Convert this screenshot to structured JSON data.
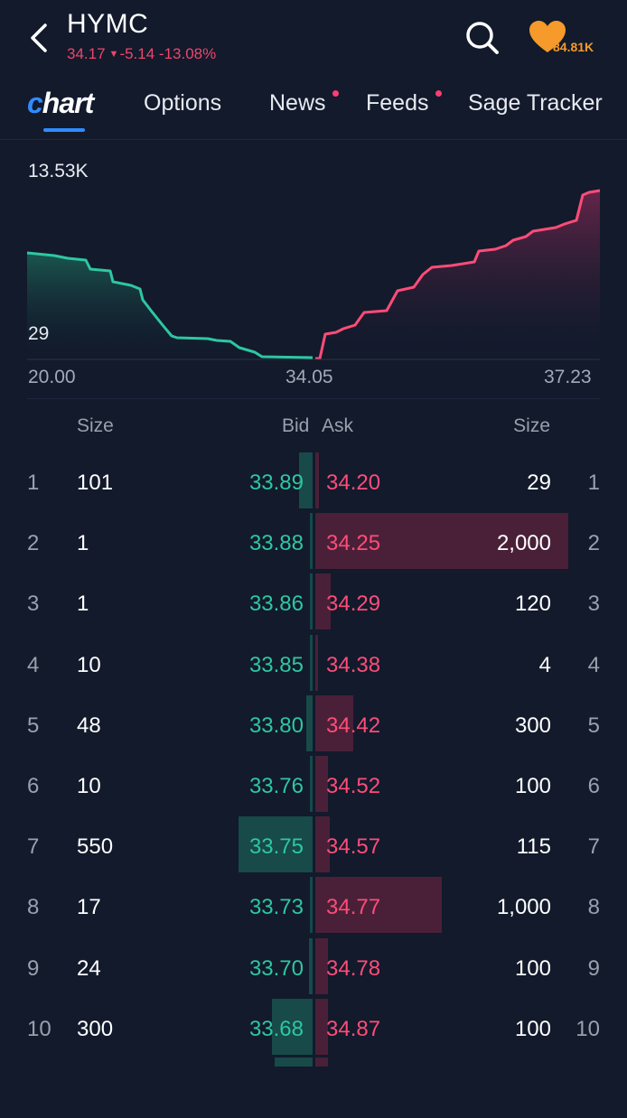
{
  "header": {
    "ticker": "HYMC",
    "price": "34.17",
    "change": "-5.14",
    "change_pct": "-13.08%",
    "watch_count": "84.81K",
    "icons": {
      "back": "chevron-left-icon",
      "search": "search-icon",
      "watch": "heart-icon"
    }
  },
  "tabs": [
    {
      "label": "Chart",
      "active": true
    },
    {
      "label": "Options"
    },
    {
      "label": "News",
      "dot": true
    },
    {
      "label": "Feeds",
      "dot": true
    },
    {
      "label": "Sage Tracker"
    }
  ],
  "chart_data": {
    "type": "area",
    "y_tick_labels": [
      "13.53K",
      "29"
    ],
    "x_tick_labels": [
      "20.00",
      "34.05",
      "37.23"
    ],
    "bid_color": "#2ec7a1",
    "ask_color": "#ff4c77"
  },
  "book": {
    "headers": {
      "bid_size": "Size",
      "bid": "Bid",
      "ask": "Ask",
      "ask_size": "Size"
    },
    "rows": [
      {
        "n": "1",
        "bid_size": "101",
        "bid": "33.89",
        "ask": "34.20",
        "ask_size": "29"
      },
      {
        "n": "2",
        "bid_size": "1",
        "bid": "33.88",
        "ask": "34.25",
        "ask_size": "2,000"
      },
      {
        "n": "3",
        "bid_size": "1",
        "bid": "33.86",
        "ask": "34.29",
        "ask_size": "120"
      },
      {
        "n": "4",
        "bid_size": "10",
        "bid": "33.85",
        "ask": "34.38",
        "ask_size": "4"
      },
      {
        "n": "5",
        "bid_size": "48",
        "bid": "33.80",
        "ask": "34.42",
        "ask_size": "300"
      },
      {
        "n": "6",
        "bid_size": "10",
        "bid": "33.76",
        "ask": "34.52",
        "ask_size": "100"
      },
      {
        "n": "7",
        "bid_size": "550",
        "bid": "33.75",
        "ask": "34.57",
        "ask_size": "115"
      },
      {
        "n": "8",
        "bid_size": "17",
        "bid": "33.73",
        "ask": "34.77",
        "ask_size": "1,000"
      },
      {
        "n": "9",
        "bid_size": "24",
        "bid": "33.70",
        "ask": "34.78",
        "ask_size": "100"
      },
      {
        "n": "10",
        "bid_size": "300",
        "bid": "33.68",
        "ask": "34.87",
        "ask_size": "100"
      }
    ]
  }
}
